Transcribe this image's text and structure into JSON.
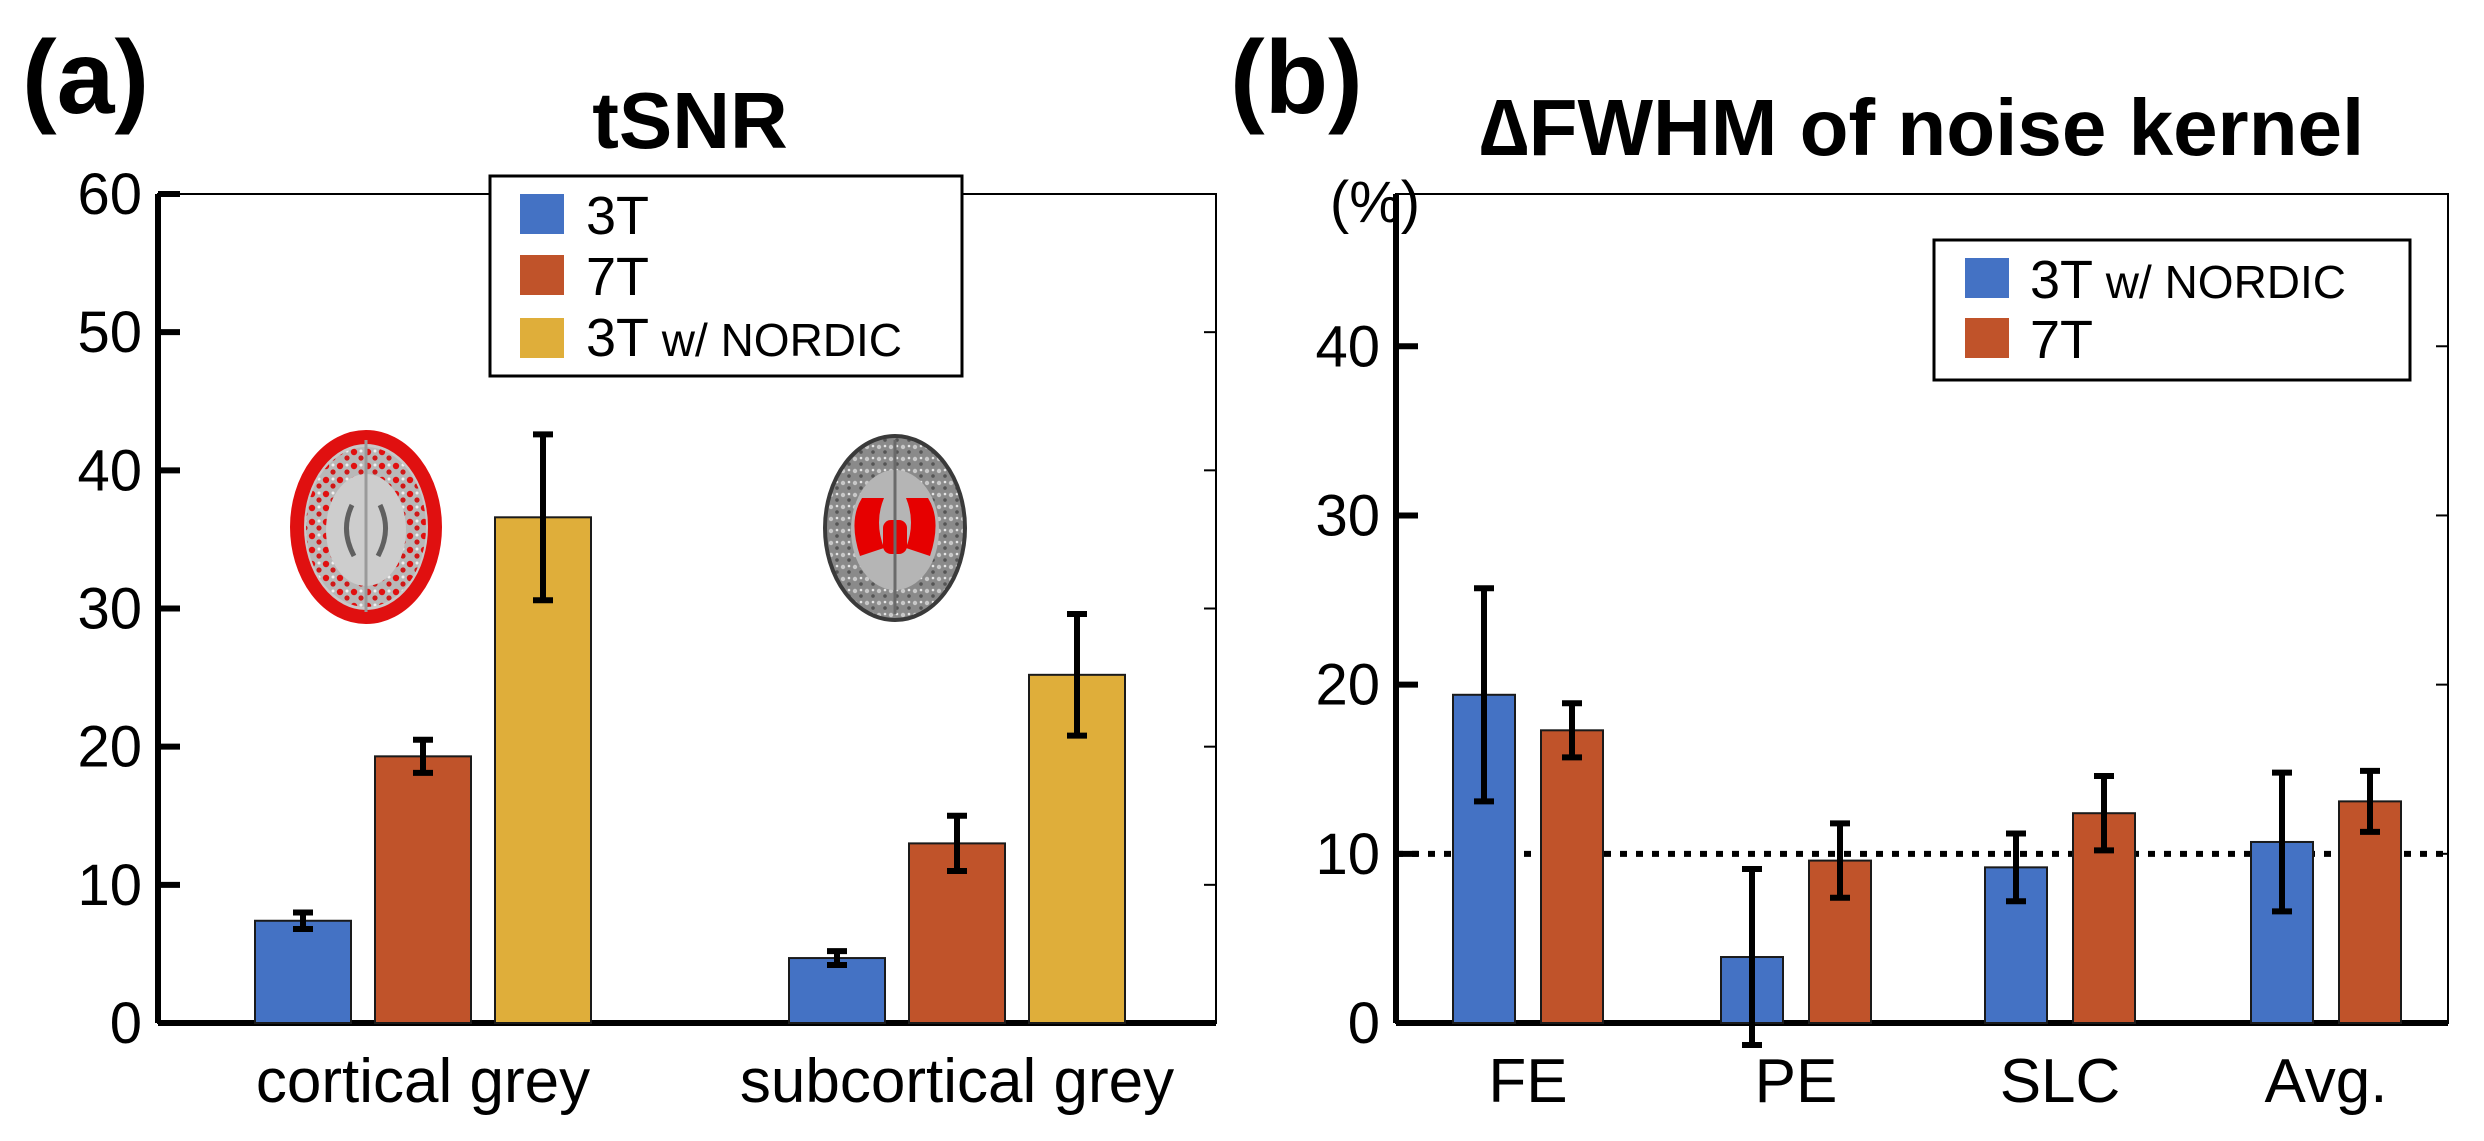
{
  "colors": {
    "blue": "#4472C4",
    "orange": "#C0532A",
    "gold": "#DFAE3A"
  },
  "chart_data": [
    {
      "panel_label": "(a)",
      "type": "bar",
      "title": "tSNR",
      "xlabel": "",
      "ylabel": "",
      "ylim": [
        0,
        60
      ],
      "yticks": [
        0,
        10,
        20,
        30,
        40,
        50,
        60
      ],
      "grid": false,
      "legend_position": "top-center",
      "categories": [
        "cortical grey",
        "subcortical grey"
      ],
      "inset_images": [
        "cortical-grey-mask-brain",
        "subcortical-grey-mask-brain"
      ],
      "series": [
        {
          "name": "3T",
          "legend": [
            "3T",
            ""
          ],
          "color": "#4472C4",
          "values": [
            7.4,
            4.7
          ],
          "errors": [
            0.6,
            0.5
          ]
        },
        {
          "name": "7T",
          "legend": [
            "7T",
            ""
          ],
          "color": "#C0532A",
          "values": [
            19.3,
            13.0
          ],
          "errors": [
            1.2,
            2.0
          ]
        },
        {
          "name": "3T w/ NORDIC",
          "legend": [
            "3T",
            " w/ NORDIC"
          ],
          "color": "#DFAE3A",
          "values": [
            36.6,
            25.2
          ],
          "errors": [
            6.0,
            4.4
          ]
        }
      ]
    },
    {
      "panel_label": "(b)",
      "type": "bar",
      "title": "∆FWHM of noise kernel",
      "xlabel": "",
      "ylabel": "(%)",
      "ylim": [
        0,
        49
      ],
      "yticks": [
        0,
        10,
        20,
        30,
        40
      ],
      "grid": false,
      "legend_position": "top-right",
      "reference_line": 10,
      "categories": [
        "FE",
        "PE",
        "SLC",
        "Avg."
      ],
      "series": [
        {
          "name": "3T w/ NORDIC",
          "legend": [
            "3T",
            " w/ NORDIC"
          ],
          "color": "#4472C4",
          "values": [
            19.4,
            3.9,
            9.2,
            10.7
          ],
          "errors": [
            6.3,
            5.2,
            2.0,
            4.1
          ]
        },
        {
          "name": "7T",
          "legend": [
            "7T",
            ""
          ],
          "color": "#C0532A",
          "values": [
            17.3,
            9.6,
            12.4,
            13.1
          ],
          "errors": [
            1.6,
            2.2,
            2.2,
            1.8
          ]
        }
      ]
    }
  ]
}
